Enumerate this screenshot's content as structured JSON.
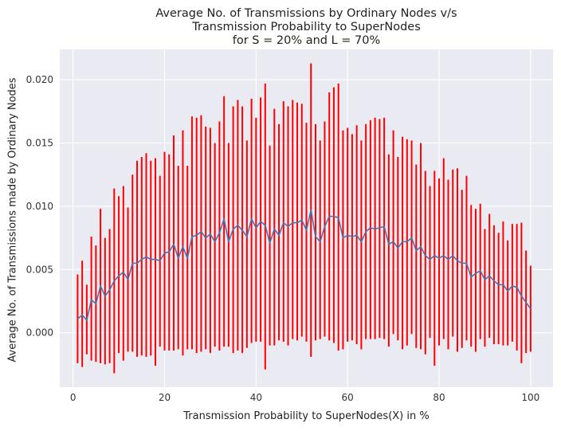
{
  "chart_data": {
    "type": "line",
    "title": [
      "Average No. of Transmissions by Ordinary Nodes v/s",
      "Transmission Probability to SuperNodes",
      "for S = 20% and L = 70%"
    ],
    "xlabel": "Transmission Probability to SuperNodes(X) in %",
    "ylabel": "Average No. of Transmissions made by Ordinary Nodes",
    "xlim": [
      -2.9,
      104.9
    ],
    "ylim": [
      -0.0043,
      0.0224
    ],
    "x_ticks": [
      0,
      20,
      40,
      60,
      80,
      100
    ],
    "x_tick_labels": [
      "0",
      "20",
      "40",
      "60",
      "80",
      "100"
    ],
    "y_ticks": [
      0.0,
      0.005,
      0.01,
      0.015,
      0.02
    ],
    "y_tick_labels": [
      "0.000",
      "0.005",
      "0.010",
      "0.015",
      "0.020"
    ],
    "grid": true,
    "legend": "none",
    "colors": {
      "mean_line": "#4c72b0",
      "error_bars": "#ff0000",
      "background": "#eaeaf2",
      "grid": "#ffffff"
    },
    "series": [
      {
        "x": [
          1,
          2,
          3,
          4,
          5,
          6,
          7,
          8,
          9,
          10,
          11,
          12,
          13,
          14,
          15,
          16,
          17,
          18,
          19,
          20,
          21,
          22,
          23,
          24,
          25,
          26,
          27,
          28,
          29,
          30,
          31,
          32,
          33,
          34,
          35,
          36,
          37,
          38,
          39,
          40,
          41,
          42,
          43,
          44,
          45,
          46,
          47,
          48,
          49,
          50,
          51,
          52,
          53,
          54,
          55,
          56,
          57,
          58,
          59,
          60,
          61,
          62,
          63,
          64,
          65,
          66,
          67,
          68,
          69,
          70,
          71,
          72,
          73,
          74,
          75,
          76,
          77,
          78,
          79,
          80,
          81,
          82,
          83,
          84,
          85,
          86,
          87,
          88,
          89,
          90,
          91,
          92,
          93,
          94,
          95,
          96,
          97,
          98,
          99,
          100
        ],
        "mean": [
          0.0011,
          0.0014,
          0.001,
          0.0026,
          0.0023,
          0.0037,
          0.0029,
          0.0034,
          0.0041,
          0.0045,
          0.0048,
          0.0042,
          0.0055,
          0.0055,
          0.0058,
          0.006,
          0.0058,
          0.0058,
          0.0057,
          0.0063,
          0.0064,
          0.007,
          0.0059,
          0.0068,
          0.0059,
          0.0076,
          0.0077,
          0.008,
          0.0075,
          0.0078,
          0.0072,
          0.0079,
          0.009,
          0.0072,
          0.0082,
          0.0085,
          0.0081,
          0.0076,
          0.009,
          0.0083,
          0.0088,
          0.0085,
          0.0071,
          0.0082,
          0.0077,
          0.0087,
          0.0084,
          0.0087,
          0.0087,
          0.0089,
          0.0081,
          0.0097,
          0.0076,
          0.0072,
          0.0084,
          0.0092,
          0.0092,
          0.0091,
          0.0075,
          0.0077,
          0.0076,
          0.0077,
          0.0072,
          0.008,
          0.0083,
          0.0082,
          0.0083,
          0.0084,
          0.007,
          0.0072,
          0.0067,
          0.0072,
          0.0072,
          0.0075,
          0.0065,
          0.0068,
          0.0061,
          0.0058,
          0.0061,
          0.0059,
          0.0061,
          0.0058,
          0.0061,
          0.0057,
          0.0055,
          0.0055,
          0.0044,
          0.0047,
          0.0049,
          0.0042,
          0.0045,
          0.0041,
          0.0038,
          0.0038,
          0.0033,
          0.0037,
          0.0036,
          0.0029,
          0.0024,
          0.0019
        ],
        "upper": [
          0.0046,
          0.0057,
          0.0038,
          0.0076,
          0.0069,
          0.0098,
          0.0075,
          0.0082,
          0.0114,
          0.0108,
          0.0116,
          0.0099,
          0.0125,
          0.0136,
          0.0139,
          0.0142,
          0.0136,
          0.0138,
          0.0124,
          0.0143,
          0.0141,
          0.0156,
          0.0132,
          0.016,
          0.0132,
          0.0171,
          0.017,
          0.0172,
          0.0163,
          0.0162,
          0.015,
          0.0167,
          0.0187,
          0.015,
          0.0179,
          0.0184,
          0.0179,
          0.0152,
          0.0185,
          0.017,
          0.0186,
          0.0197,
          0.0148,
          0.0177,
          0.0165,
          0.0183,
          0.0179,
          0.0184,
          0.0182,
          0.0181,
          0.0166,
          0.0213,
          0.0165,
          0.0152,
          0.0167,
          0.019,
          0.0194,
          0.0197,
          0.016,
          0.0162,
          0.0157,
          0.0164,
          0.0152,
          0.0165,
          0.0168,
          0.017,
          0.0169,
          0.017,
          0.0141,
          0.016,
          0.0139,
          0.0155,
          0.0153,
          0.0152,
          0.0133,
          0.015,
          0.0128,
          0.0116,
          0.0128,
          0.0122,
          0.0138,
          0.0121,
          0.0129,
          0.013,
          0.0113,
          0.0124,
          0.0101,
          0.0098,
          0.0102,
          0.0082,
          0.0094,
          0.0085,
          0.0079,
          0.0088,
          0.0073,
          0.0086,
          0.0086,
          0.0087,
          0.0065,
          0.0053
        ],
        "lower": [
          -0.0024,
          -0.0027,
          -0.0017,
          -0.0022,
          -0.0023,
          -0.0024,
          -0.0025,
          -0.0024,
          -0.0032,
          -0.0016,
          -0.0022,
          -0.0015,
          -0.0015,
          -0.0019,
          -0.0018,
          -0.0019,
          -0.0018,
          -0.0026,
          -0.0011,
          -0.0014,
          -0.0014,
          -0.0014,
          -0.0013,
          -0.0018,
          -0.0013,
          -0.0013,
          -0.0016,
          -0.0015,
          -0.0013,
          -0.0016,
          -0.0011,
          -0.0014,
          -0.0011,
          -0.0011,
          -0.0016,
          -0.0014,
          -0.0016,
          -0.0012,
          -0.0008,
          -0.0007,
          -0.0007,
          -0.0029,
          -0.001,
          -0.001,
          -0.0006,
          -0.0007,
          -0.001,
          -0.0005,
          -0.0006,
          -0.0003,
          -0.0007,
          -0.0019,
          -0.0006,
          -0.0005,
          -0.0003,
          -0.0006,
          -0.0008,
          -0.0014,
          -0.0013,
          -0.0007,
          -0.0006,
          -0.0009,
          -0.0013,
          -0.0005,
          -0.0005,
          -0.0005,
          -0.0004,
          -0.0005,
          -0.0011,
          -0.0001,
          -0.0006,
          -0.0013,
          -0.001,
          -0.0001,
          -0.0012,
          -0.0013,
          -0.0017,
          -0.0004,
          -0.0026,
          -0.001,
          -0.0005,
          -0.0013,
          -0.0003,
          -0.0015,
          -0.0012,
          -0.0006,
          -0.0011,
          -0.0015,
          -0.0005,
          -0.0011,
          -0.0004,
          -0.0009,
          -0.0009,
          -0.001,
          -0.001,
          -0.0007,
          -0.0014,
          -0.0024,
          -0.0016,
          -0.0015
        ]
      }
    ]
  }
}
